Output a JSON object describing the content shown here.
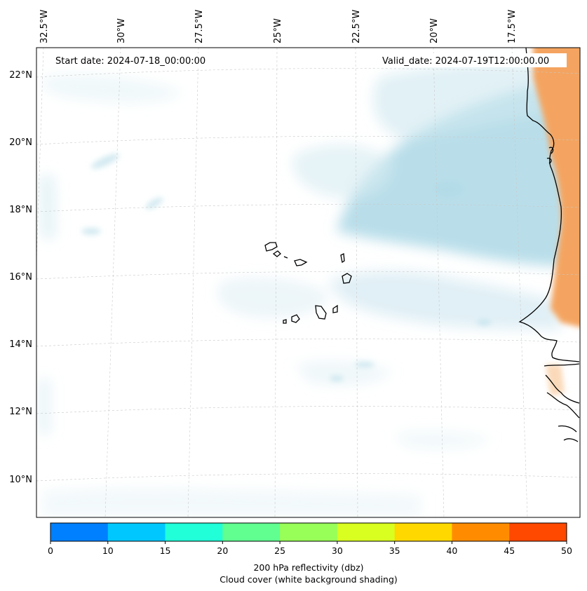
{
  "header": {
    "start_date": "Start date: 2024-07-18_00:00:00",
    "valid_date": "Valid_date: 2024-07-19T12:00:00.00"
  },
  "longitude_labels": [
    "32.5°W",
    "30°W",
    "27.5°W",
    "25°W",
    "22.5°W",
    "20°W",
    "17.5°W"
  ],
  "latitude_labels": [
    "22°N",
    "20°N",
    "18°N",
    "16°N",
    "14°N",
    "12°N",
    "10°N"
  ],
  "colorbar": {
    "ticks": [
      "0",
      "10",
      "15",
      "20",
      "25",
      "30",
      "35",
      "40",
      "45",
      "50"
    ],
    "colors": [
      "#0080ff",
      "#00c8ff",
      "#20ffd8",
      "#60ff90",
      "#98ff58",
      "#d8ff20",
      "#ffd800",
      "#ff8c00",
      "#ff4800"
    ],
    "label_line1": "200 hPa reflectivity (dbz)",
    "label_line2": "Cloud cover (white background shading)"
  },
  "colors": {
    "cloud": "#add8e6",
    "land_shade": "#f4a460",
    "coast": "#000000",
    "grid": "#c8c8c8"
  }
}
